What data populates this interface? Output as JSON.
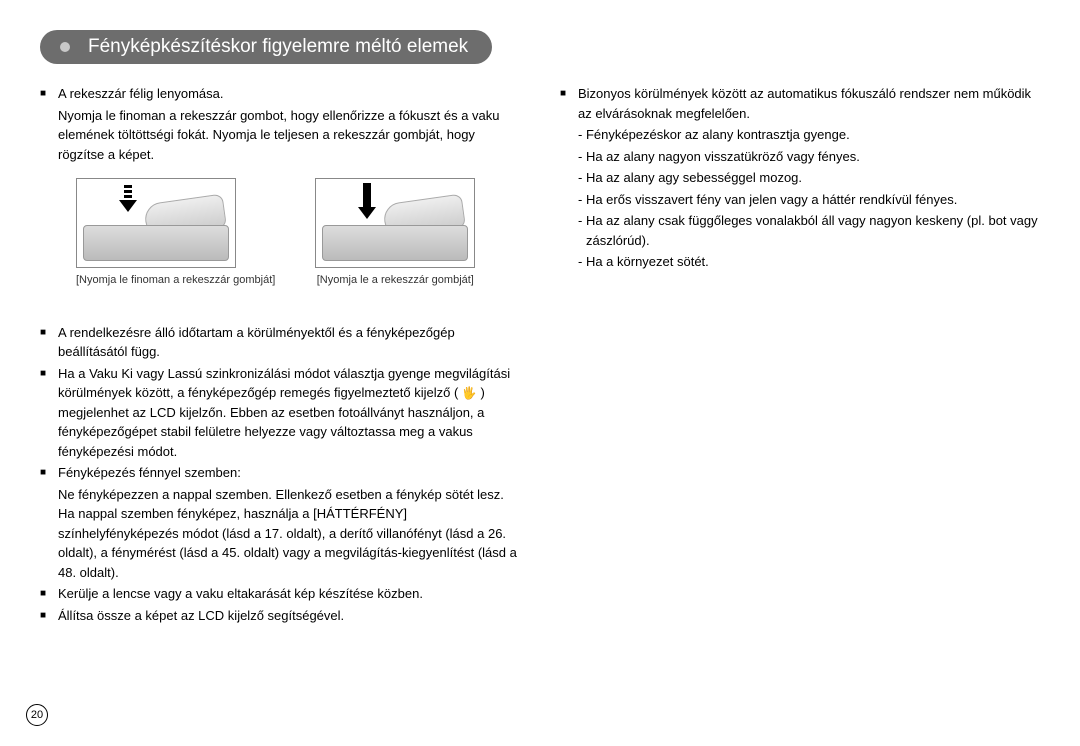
{
  "header": {
    "title": "Fényképkészítéskor figyelemre méltó elemek"
  },
  "left": {
    "b1_title": "A rekeszzár félig lenyomása.",
    "b1_body": "Nyomja le finoman a rekeszzár gombot, hogy ellenőrizze a fókuszt és a vaku elemének töltöttségi fokát. Nyomja le teljesen a rekeszzár gombját, hogy rögzítse a képet.",
    "fig1_caption": "[Nyomja le finoman a rekeszzár gombját]",
    "fig2_caption": "[Nyomja le a rekeszzár gombját]",
    "b2": "A rendelkezésre álló időtartam a körülményektől és a fényképezőgép beállításától függ.",
    "b3_a": "Ha a Vaku Ki vagy Lassú szinkronizálási módot választja gyenge megvilágítási körülmények között, a fényképezőgép remegés figyelmeztető kijelző ( ",
    "b3_b": " ) megjelenhet az LCD kijelzőn. Ebben az esetben fotoállványt használjon, a fényképezőgépet stabil felületre helyezze vagy változtassa meg a vakus fényképezési módot.",
    "b4_title": "Fényképezés fénnyel szemben:",
    "b4_body": "Ne fényképezzen a nappal szemben. Ellenkező esetben a fénykép sötét lesz. Ha nappal szemben fényképez, használja a [HÁTTÉRFÉNY] színhelyfényképezés módot (lásd a 17. oldalt), a derítő villanófényt (lásd a 26. oldalt), a fénymérést (lásd a 45. oldalt) vagy a megvilágítás-kiegyenlítést (lásd a 48. oldalt).",
    "b5": "Kerülje a lencse vagy a vaku eltakarását kép készítése közben.",
    "b6": "Állítsa össze a képet az LCD kijelző segítségével."
  },
  "right": {
    "b1_title": "Bizonyos körülmények között az automatikus fókuszáló rendszer nem működik az elvárásoknak megfelelően.",
    "d1": "- Fényképezéskor az alany kontrasztja gyenge.",
    "d2": "- Ha az alany nagyon visszatükröző vagy fényes.",
    "d3": "- Ha az alany agy sebességgel mozog.",
    "d4": "- Ha erős visszavert fény van jelen vagy a háttér rendkívül fényes.",
    "d5": "- Ha az alany csak függőleges vonalakból áll vagy nagyon keskeny (pl. bot vagy zászlórúd).",
    "d6": "- Ha a környezet sötét."
  },
  "page_number": "20"
}
